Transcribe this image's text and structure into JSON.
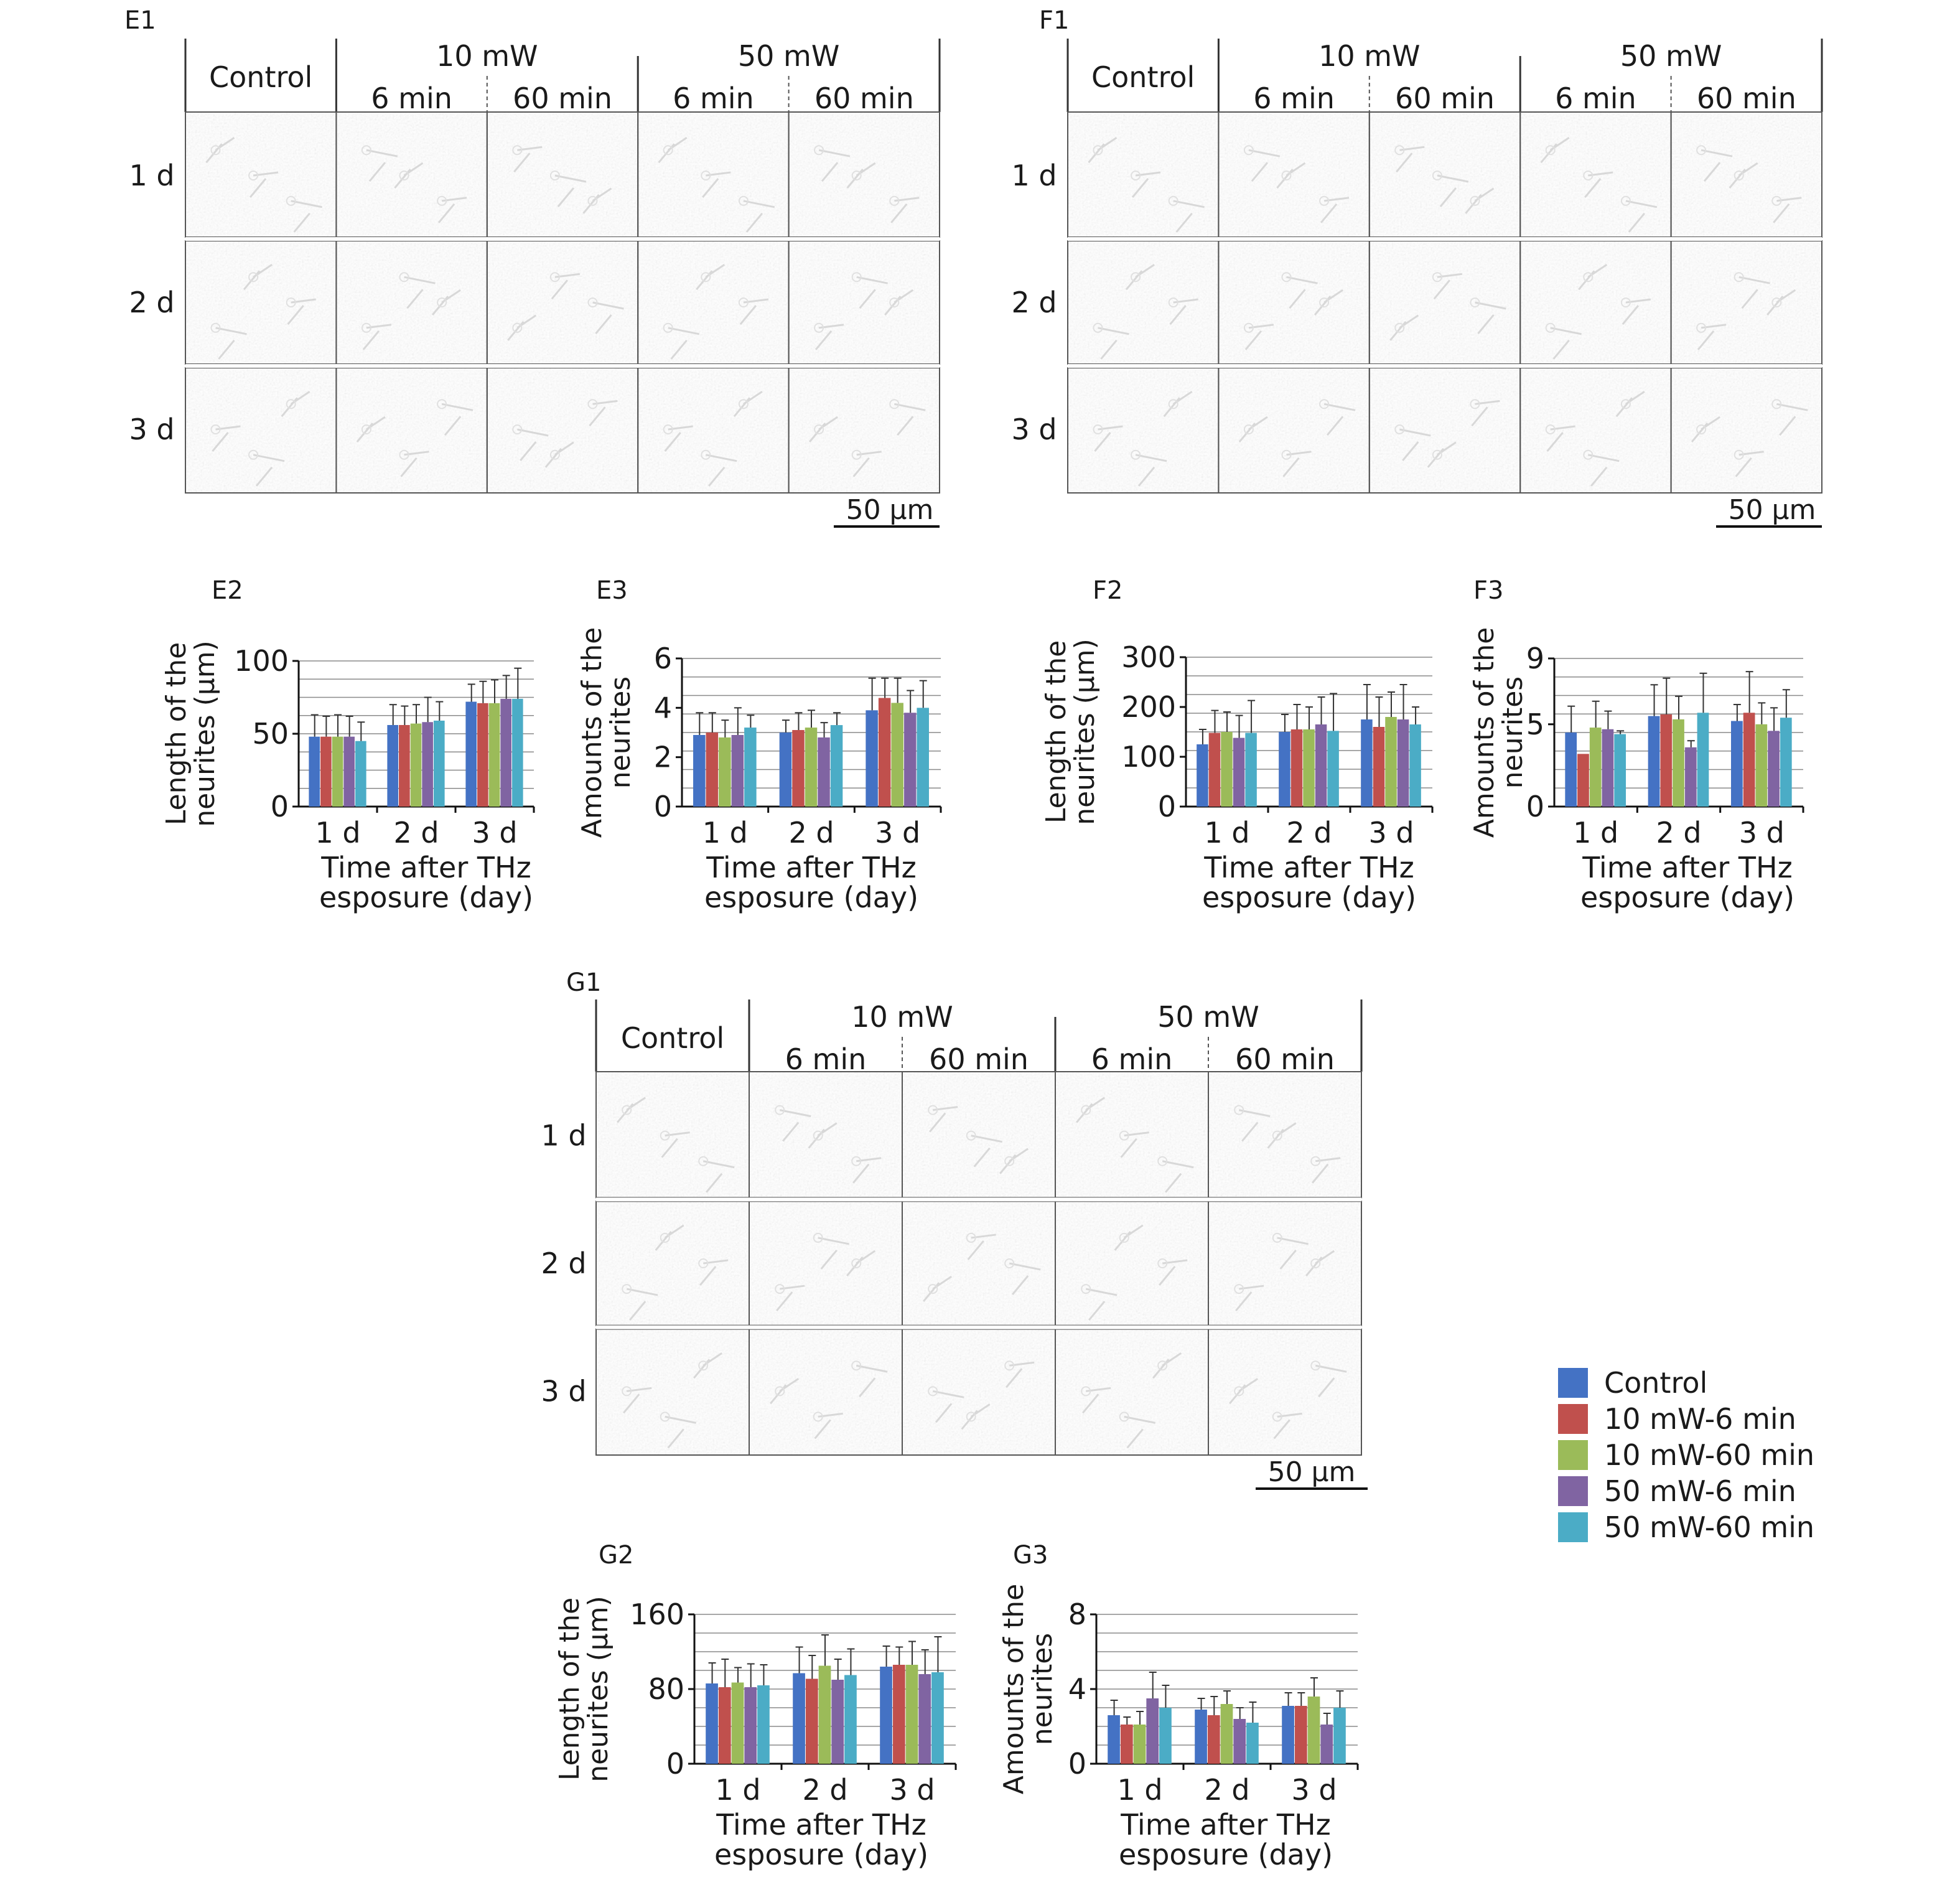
{
  "panel_labels": {
    "E1": "E1",
    "F1": "F1",
    "G1": "G1"
  },
  "micrograph": {
    "control_label": "Control",
    "power_10": "10 mW",
    "power_50": "50 mW",
    "dur_6": "6 min",
    "dur_60": "60 min",
    "rows": [
      "1 d",
      "2 d",
      "3 d"
    ],
    "scale_bar": "50 μm"
  },
  "legend": {
    "items": [
      {
        "label": "Control",
        "color": "#4472c4"
      },
      {
        "label": "10 mW-6 min",
        "color": "#c0504d"
      },
      {
        "label": "10 mW-60 min",
        "color": "#9bbb59"
      },
      {
        "label": "50 mW-6 min",
        "color": "#8064a2"
      },
      {
        "label": "50 mW-60 min",
        "color": "#4bacc6"
      }
    ]
  },
  "chart_data": [
    {
      "id": "E2",
      "type": "bar",
      "panel": "E2",
      "categories": [
        "1 d",
        "2 d",
        "3 d"
      ],
      "ylabel_lines": [
        "Length of the",
        "neurites (μm)"
      ],
      "xlabel_lines": [
        "Time after THz",
        "esposure (day)"
      ],
      "ylim": [
        0,
        100
      ],
      "yticks": [
        0,
        50,
        100
      ],
      "series": [
        {
          "name": "Control",
          "values": [
            48,
            56,
            72
          ],
          "errors": [
            15,
            14,
            12
          ]
        },
        {
          "name": "10 mW-6 min",
          "values": [
            48,
            56,
            71
          ],
          "errors": [
            14,
            13,
            15
          ]
        },
        {
          "name": "10 mW-60 min",
          "values": [
            48,
            57,
            71
          ],
          "errors": [
            15,
            13,
            16
          ]
        },
        {
          "name": "50 mW-6 min",
          "values": [
            48,
            58,
            74
          ],
          "errors": [
            14,
            17,
            16
          ]
        },
        {
          "name": "50 mW-60 min",
          "values": [
            45,
            59,
            74
          ],
          "errors": [
            13,
            13,
            21
          ]
        }
      ]
    },
    {
      "id": "E3",
      "type": "bar",
      "panel": "E3",
      "categories": [
        "1 d",
        "2 d",
        "3 d"
      ],
      "ylabel_lines": [
        "Amounts of the",
        "neurites"
      ],
      "xlabel_lines": [
        "Time after THz",
        "esposure (day)"
      ],
      "ylim": [
        0,
        6
      ],
      "yticks": [
        0,
        2,
        4,
        6
      ],
      "series": [
        {
          "name": "Control",
          "values": [
            2.9,
            3.0,
            3.9
          ],
          "errors": [
            0.9,
            0.5,
            1.3
          ]
        },
        {
          "name": "10 mW-6 min",
          "values": [
            3.0,
            3.1,
            4.4
          ],
          "errors": [
            0.8,
            0.7,
            0.8
          ]
        },
        {
          "name": "10 mW-60 min",
          "values": [
            2.8,
            3.2,
            4.2
          ],
          "errors": [
            0.7,
            0.7,
            1.0
          ]
        },
        {
          "name": "50 mW-6 min",
          "values": [
            2.9,
            2.8,
            3.8
          ],
          "errors": [
            1.1,
            0.6,
            0.9
          ]
        },
        {
          "name": "50 mW-60 min",
          "values": [
            3.2,
            3.3,
            4.0
          ],
          "errors": [
            0.5,
            0.5,
            1.1
          ]
        }
      ]
    },
    {
      "id": "F2",
      "type": "bar",
      "panel": "F2",
      "categories": [
        "1 d",
        "2 d",
        "3 d"
      ],
      "ylabel_lines": [
        "Length of the",
        "neurites (μm)"
      ],
      "xlabel_lines": [
        "Time after THz",
        "esposure (day)"
      ],
      "ylim": [
        0,
        300
      ],
      "yticks": [
        0,
        100,
        200,
        300
      ],
      "series": [
        {
          "name": "Control",
          "values": [
            125,
            150,
            175
          ],
          "errors": [
            30,
            35,
            70
          ]
        },
        {
          "name": "10 mW-6 min",
          "values": [
            148,
            155,
            160
          ],
          "errors": [
            45,
            50,
            60
          ]
        },
        {
          "name": "10 mW-60 min",
          "values": [
            150,
            155,
            180
          ],
          "errors": [
            40,
            45,
            50
          ]
        },
        {
          "name": "50 mW-6 min",
          "values": [
            138,
            165,
            175
          ],
          "errors": [
            45,
            55,
            70
          ]
        },
        {
          "name": "50 mW-60 min",
          "values": [
            148,
            152,
            165
          ],
          "errors": [
            65,
            75,
            35
          ]
        }
      ]
    },
    {
      "id": "F3",
      "type": "bar",
      "panel": "F3",
      "categories": [
        "1 d",
        "2 d",
        "3 d"
      ],
      "ylabel_lines": [
        "Amounts of the",
        "neurites"
      ],
      "xlabel_lines": [
        "Time after THz",
        "esposure (day)"
      ],
      "ylim": [
        0,
        9
      ],
      "yticks": [
        0,
        5,
        9
      ],
      "series": [
        {
          "name": "Control",
          "values": [
            4.5,
            5.5,
            5.2
          ],
          "errors": [
            1.6,
            1.9,
            1.0
          ]
        },
        {
          "name": "10 mW-6 min",
          "values": [
            3.2,
            5.6,
            5.7
          ],
          "errors": [
            0,
            2.2,
            2.5
          ]
        },
        {
          "name": "10 mW-60 min",
          "values": [
            4.8,
            5.3,
            5.0
          ],
          "errors": [
            1.6,
            1.4,
            1.3
          ]
        },
        {
          "name": "50 mW-6 min",
          "values": [
            4.7,
            3.6,
            4.6
          ],
          "errors": [
            1.1,
            0.4,
            1.4
          ]
        },
        {
          "name": "50 mW-60 min",
          "values": [
            4.4,
            5.7,
            5.4
          ],
          "errors": [
            0.2,
            2.4,
            1.7
          ]
        }
      ]
    },
    {
      "id": "G2",
      "type": "bar",
      "panel": "G2",
      "categories": [
        "1 d",
        "2 d",
        "3 d"
      ],
      "ylabel_lines": [
        "Length of the",
        "neurites (μm)"
      ],
      "xlabel_lines": [
        "Time after THz",
        "esposure (day)"
      ],
      "ylim": [
        0,
        160
      ],
      "yticks": [
        0,
        80,
        160
      ],
      "series": [
        {
          "name": "Control",
          "values": [
            86,
            97,
            104
          ],
          "errors": [
            22,
            28,
            22
          ]
        },
        {
          "name": "10 mW-6 min",
          "values": [
            82,
            91,
            106
          ],
          "errors": [
            30,
            25,
            19
          ]
        },
        {
          "name": "10 mW-60 min",
          "values": [
            87,
            105,
            106
          ],
          "errors": [
            16,
            33,
            25
          ]
        },
        {
          "name": "50 mW-6 min",
          "values": [
            82,
            90,
            96
          ],
          "errors": [
            25,
            22,
            26
          ]
        },
        {
          "name": "50 mW-60 min",
          "values": [
            84,
            95,
            98
          ],
          "errors": [
            22,
            28,
            38
          ]
        }
      ]
    },
    {
      "id": "G3",
      "type": "bar",
      "panel": "G3",
      "categories": [
        "1 d",
        "2 d",
        "3 d"
      ],
      "ylabel_lines": [
        "Amounts of the",
        "neurites"
      ],
      "xlabel_lines": [
        "Time after THz",
        "esposure (day)"
      ],
      "ylim": [
        0,
        8
      ],
      "yticks": [
        0,
        4,
        8
      ],
      "series": [
        {
          "name": "Control",
          "values": [
            2.6,
            2.9,
            3.1
          ],
          "errors": [
            0.8,
            0.6,
            0.7
          ]
        },
        {
          "name": "10 mW-6 min",
          "values": [
            2.1,
            2.6,
            3.1
          ],
          "errors": [
            0.4,
            1.0,
            0.7
          ]
        },
        {
          "name": "10 mW-60 min",
          "values": [
            2.1,
            3.2,
            3.6
          ],
          "errors": [
            0.7,
            0.7,
            1.0
          ]
        },
        {
          "name": "50 mW-6 min",
          "values": [
            3.5,
            2.4,
            2.1
          ],
          "errors": [
            1.4,
            0.6,
            0.6
          ]
        },
        {
          "name": "50 mW-60 min",
          "values": [
            3.0,
            2.2,
            3.0
          ],
          "errors": [
            1.2,
            1.1,
            0.9
          ]
        }
      ]
    }
  ]
}
